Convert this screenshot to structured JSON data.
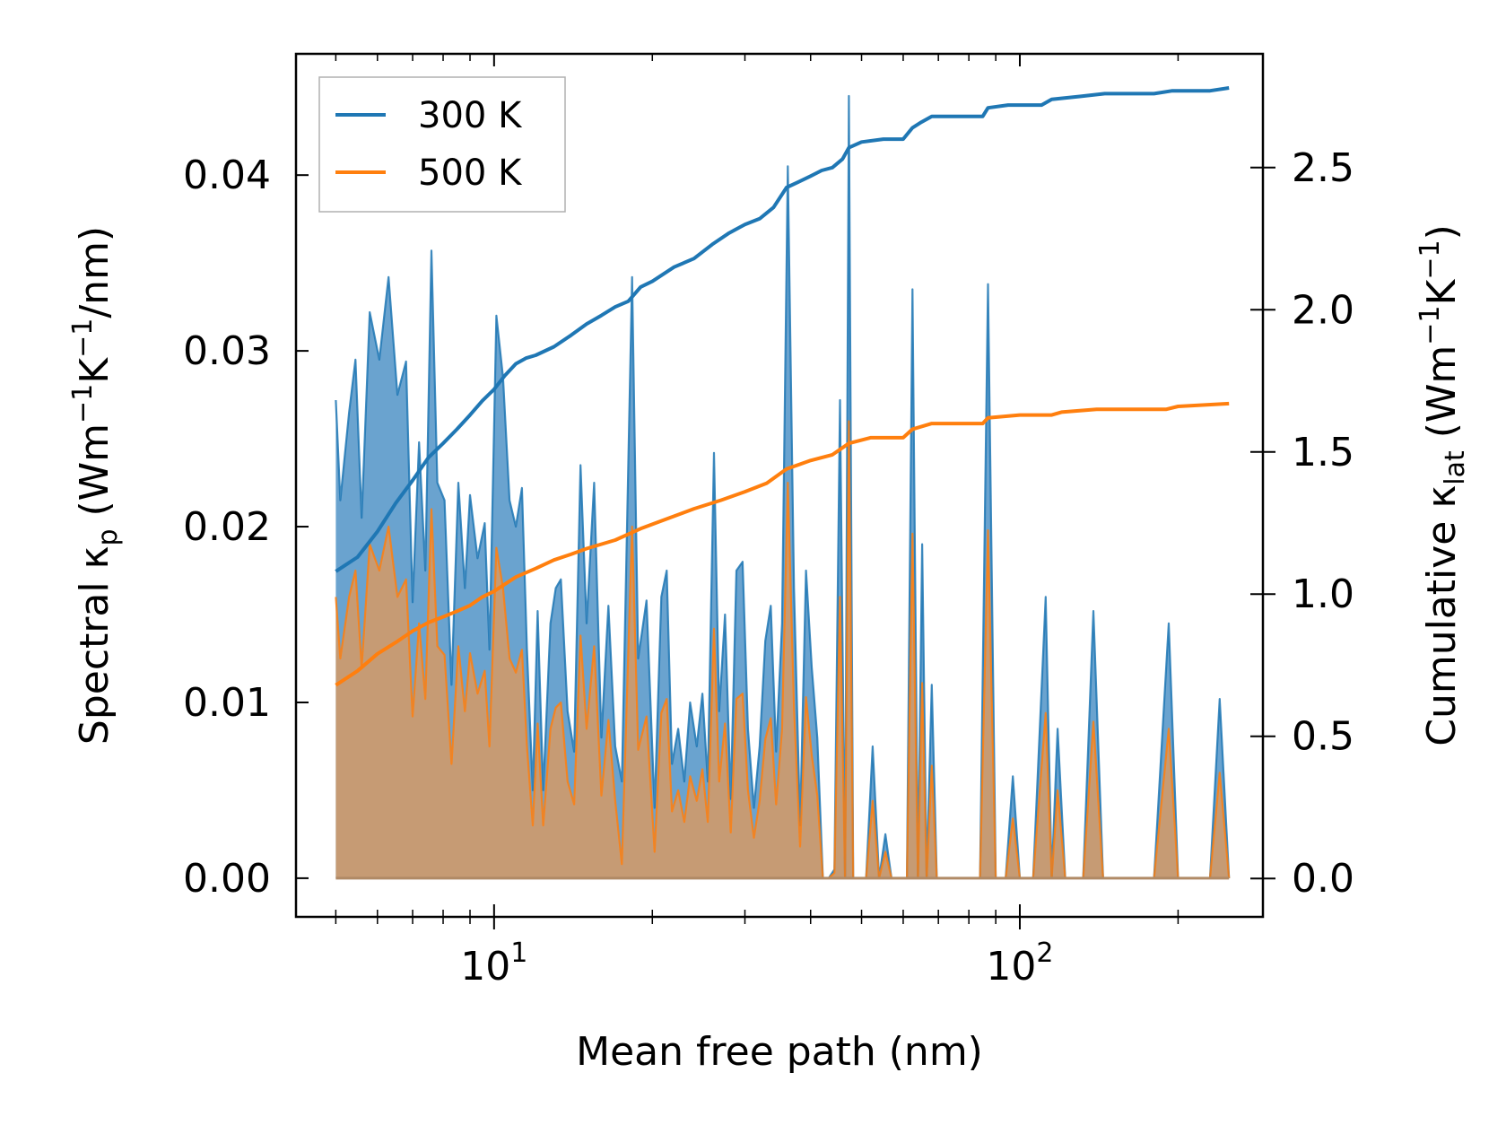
{
  "chart_data": {
    "type": "area",
    "title": "",
    "xlabel": "Mean free path (nm)",
    "ylabel": {
      "prefix": "Spectral κ",
      "sub": "p",
      "suffix_main": " (Wm",
      "sup1": "−1",
      "mid": "K",
      "sup2": "−1",
      "tail": "/nm)"
    },
    "y2label": {
      "prefix": "Cumulative κ",
      "sub": "lat",
      "suffix_main": " (Wm",
      "sup1": "−1",
      "mid": "K",
      "sup2": "−1",
      "tail": ")"
    },
    "xscale": "log",
    "xlim": [
      4.2,
      290
    ],
    "ylim": [
      -0.0022,
      0.0469
    ],
    "y2lim": [
      -0.135,
      2.9
    ],
    "x_ticks": [
      {
        "value": 10,
        "base": "10",
        "exp": "1"
      },
      {
        "value": 100,
        "base": "10",
        "exp": "2"
      }
    ],
    "y_ticks": [
      "0.00",
      "0.01",
      "0.02",
      "0.03",
      "0.04"
    ],
    "y2_ticks": [
      "0.0",
      "0.5",
      "1.0",
      "1.5",
      "2.0",
      "2.5"
    ],
    "legend": {
      "position": "top-left",
      "entries": [
        "300 K",
        "500 K"
      ]
    },
    "colors": {
      "s300": "#1f77b4",
      "s500": "#ff7f0e",
      "fill300": "#6aa3cf",
      "fill500": "#c69b74"
    },
    "spectral": {
      "300 K": [
        [
          5.0,
          0.0272
        ],
        [
          5.1,
          0.0215
        ],
        [
          5.3,
          0.0265
        ],
        [
          5.45,
          0.0295
        ],
        [
          5.6,
          0.0205
        ],
        [
          5.8,
          0.0322
        ],
        [
          6.05,
          0.0295
        ],
        [
          6.3,
          0.0342
        ],
        [
          6.55,
          0.0275
        ],
        [
          6.8,
          0.0294
        ],
        [
          7.0,
          0.0157
        ],
        [
          7.2,
          0.0248
        ],
        [
          7.4,
          0.0175
        ],
        [
          7.6,
          0.0357
        ],
        [
          7.8,
          0.0225
        ],
        [
          8.05,
          0.0215
        ],
        [
          8.3,
          0.011
        ],
        [
          8.55,
          0.0225
        ],
        [
          8.8,
          0.0165
        ],
        [
          9.0,
          0.0218
        ],
        [
          9.3,
          0.0182
        ],
        [
          9.6,
          0.0202
        ],
        [
          9.8,
          0.013
        ],
        [
          10.1,
          0.032
        ],
        [
          10.4,
          0.0285
        ],
        [
          10.7,
          0.0215
        ],
        [
          11.0,
          0.02
        ],
        [
          11.3,
          0.0222
        ],
        [
          11.55,
          0.013
        ],
        [
          11.85,
          0.005
        ],
        [
          12.1,
          0.0152
        ],
        [
          12.4,
          0.005
        ],
        [
          12.8,
          0.0145
        ],
        [
          13.1,
          0.0165
        ],
        [
          13.4,
          0.017
        ],
        [
          13.8,
          0.0095
        ],
        [
          14.2,
          0.0072
        ],
        [
          14.6,
          0.0235
        ],
        [
          15.0,
          0.0145
        ],
        [
          15.5,
          0.0225
        ],
        [
          16.0,
          0.008
        ],
        [
          16.5,
          0.0155
        ],
        [
          17.0,
          0.0075
        ],
        [
          17.5,
          0.0055
        ],
        [
          18.3,
          0.0342
        ],
        [
          18.8,
          0.0125
        ],
        [
          19.5,
          0.0158
        ],
        [
          20.2,
          0.004
        ],
        [
          20.8,
          0.016
        ],
        [
          21.3,
          0.0175
        ],
        [
          21.8,
          0.0065
        ],
        [
          22.4,
          0.0085
        ],
        [
          23.0,
          0.0055
        ],
        [
          23.6,
          0.01
        ],
        [
          24.3,
          0.0075
        ],
        [
          24.9,
          0.0105
        ],
        [
          25.5,
          0.0055
        ],
        [
          26.2,
          0.0242
        ],
        [
          26.8,
          0.0095
        ],
        [
          27.5,
          0.015
        ],
        [
          28.2,
          0.0045
        ],
        [
          28.9,
          0.0175
        ],
        [
          29.7,
          0.018
        ],
        [
          30.4,
          0.0085
        ],
        [
          31.2,
          0.004
        ],
        [
          32.0,
          0.0075
        ],
        [
          32.8,
          0.0135
        ],
        [
          33.6,
          0.0155
        ],
        [
          34.4,
          0.0072
        ],
        [
          35.3,
          0.0145
        ],
        [
          36.2,
          0.0405
        ],
        [
          37.2,
          0.0165
        ],
        [
          38.2,
          0.003
        ],
        [
          39.2,
          0.0175
        ],
        [
          40.2,
          0.012
        ],
        [
          41.2,
          0.008
        ],
        [
          42.2,
          0.0
        ],
        [
          43.3,
          0.0
        ],
        [
          44.4,
          0.0005
        ],
        [
          45.5,
          0.0272
        ],
        [
          46.5,
          0.0
        ],
        [
          47.3,
          0.0445
        ],
        [
          48.2,
          0.0
        ],
        [
          49.5,
          0.0
        ],
        [
          51.0,
          0.0
        ],
        [
          52.5,
          0.0075
        ],
        [
          54.0,
          0.0
        ],
        [
          55.5,
          0.0025
        ],
        [
          57.0,
          0.0
        ],
        [
          59.0,
          0.0
        ],
        [
          61.0,
          0.0
        ],
        [
          62.5,
          0.0335
        ],
        [
          64.0,
          0.0
        ],
        [
          65.2,
          0.019
        ],
        [
          66.5,
          0.0
        ],
        [
          68.0,
          0.011
        ],
        [
          69.5,
          0.0
        ],
        [
          72.0,
          0.0
        ],
        [
          76.0,
          0.0
        ],
        [
          80.0,
          0.0
        ],
        [
          84.0,
          0.0
        ],
        [
          87.0,
          0.0338
        ],
        [
          90.0,
          0.0
        ],
        [
          94.0,
          0.0
        ],
        [
          97.0,
          0.0058
        ],
        [
          100.0,
          0.0
        ],
        [
          106.0,
          0.0
        ],
        [
          112.0,
          0.016
        ],
        [
          115.0,
          0.0
        ],
        [
          118.0,
          0.0085
        ],
        [
          122.0,
          0.0
        ],
        [
          132.0,
          0.0
        ],
        [
          138.0,
          0.0152
        ],
        [
          144.0,
          0.0
        ],
        [
          160.0,
          0.0
        ],
        [
          180.0,
          0.0
        ],
        [
          192.0,
          0.0145
        ],
        [
          200.0,
          0.0
        ],
        [
          215.0,
          0.0
        ],
        [
          230.0,
          0.0
        ],
        [
          240.0,
          0.0102
        ],
        [
          250.0,
          0.0
        ]
      ],
      "500 K": [
        [
          5.0,
          0.016
        ],
        [
          5.1,
          0.0125
        ],
        [
          5.3,
          0.016
        ],
        [
          5.45,
          0.0175
        ],
        [
          5.6,
          0.012
        ],
        [
          5.8,
          0.019
        ],
        [
          6.05,
          0.0175
        ],
        [
          6.3,
          0.02
        ],
        [
          6.55,
          0.016
        ],
        [
          6.8,
          0.017
        ],
        [
          7.0,
          0.0092
        ],
        [
          7.2,
          0.0145
        ],
        [
          7.4,
          0.0102
        ],
        [
          7.6,
          0.021
        ],
        [
          7.8,
          0.0132
        ],
        [
          8.05,
          0.0127
        ],
        [
          8.3,
          0.0065
        ],
        [
          8.55,
          0.0132
        ],
        [
          8.8,
          0.0095
        ],
        [
          9.0,
          0.0128
        ],
        [
          9.3,
          0.0105
        ],
        [
          9.6,
          0.0118
        ],
        [
          9.8,
          0.0075
        ],
        [
          10.1,
          0.0188
        ],
        [
          10.4,
          0.0165
        ],
        [
          10.7,
          0.0125
        ],
        [
          11.0,
          0.0117
        ],
        [
          11.3,
          0.013
        ],
        [
          11.55,
          0.0075
        ],
        [
          11.85,
          0.003
        ],
        [
          12.1,
          0.0088
        ],
        [
          12.4,
          0.003
        ],
        [
          12.8,
          0.0085
        ],
        [
          13.1,
          0.0097
        ],
        [
          13.4,
          0.01
        ],
        [
          13.8,
          0.0055
        ],
        [
          14.2,
          0.0042
        ],
        [
          14.6,
          0.0138
        ],
        [
          15.0,
          0.0085
        ],
        [
          15.5,
          0.0132
        ],
        [
          16.0,
          0.0047
        ],
        [
          16.5,
          0.009
        ],
        [
          17.0,
          0.0044
        ],
        [
          17.5,
          0.0008
        ],
        [
          18.3,
          0.02
        ],
        [
          18.8,
          0.0073
        ],
        [
          19.5,
          0.0092
        ],
        [
          20.2,
          0.0015
        ],
        [
          20.8,
          0.0094
        ],
        [
          21.3,
          0.0102
        ],
        [
          21.8,
          0.0038
        ],
        [
          22.4,
          0.005
        ],
        [
          23.0,
          0.0032
        ],
        [
          23.6,
          0.0058
        ],
        [
          24.3,
          0.0044
        ],
        [
          24.9,
          0.0062
        ],
        [
          25.5,
          0.0032
        ],
        [
          26.2,
          0.0142
        ],
        [
          26.8,
          0.0055
        ],
        [
          27.5,
          0.0088
        ],
        [
          28.2,
          0.0026
        ],
        [
          28.9,
          0.0102
        ],
        [
          29.7,
          0.0105
        ],
        [
          30.4,
          0.005
        ],
        [
          31.2,
          0.0023
        ],
        [
          32.0,
          0.0044
        ],
        [
          32.8,
          0.0079
        ],
        [
          33.6,
          0.0091
        ],
        [
          34.4,
          0.0042
        ],
        [
          35.3,
          0.0085
        ],
        [
          36.2,
          0.0225
        ],
        [
          37.2,
          0.0097
        ],
        [
          38.2,
          0.0018
        ],
        [
          39.2,
          0.0103
        ],
        [
          40.2,
          0.007
        ],
        [
          41.2,
          0.0047
        ],
        [
          42.2,
          0.0
        ],
        [
          43.3,
          0.0
        ],
        [
          44.4,
          0.0003
        ],
        [
          45.5,
          0.016
        ],
        [
          46.5,
          0.0
        ],
        [
          47.3,
          0.026
        ],
        [
          48.2,
          0.0
        ],
        [
          49.5,
          0.0
        ],
        [
          51.0,
          0.0
        ],
        [
          52.5,
          0.0044
        ],
        [
          54.0,
          0.0
        ],
        [
          55.5,
          0.0015
        ],
        [
          57.0,
          0.0
        ],
        [
          59.0,
          0.0
        ],
        [
          61.0,
          0.0
        ],
        [
          62.5,
          0.0196
        ],
        [
          64.0,
          0.0
        ],
        [
          65.2,
          0.0111
        ],
        [
          66.5,
          0.0
        ],
        [
          68.0,
          0.0064
        ],
        [
          69.5,
          0.0
        ],
        [
          72.0,
          0.0
        ],
        [
          76.0,
          0.0
        ],
        [
          80.0,
          0.0
        ],
        [
          84.0,
          0.0
        ],
        [
          87.0,
          0.0198
        ],
        [
          90.0,
          0.0
        ],
        [
          94.0,
          0.0
        ],
        [
          97.0,
          0.0034
        ],
        [
          100.0,
          0.0
        ],
        [
          106.0,
          0.0
        ],
        [
          112.0,
          0.0094
        ],
        [
          115.0,
          0.0
        ],
        [
          118.0,
          0.005
        ],
        [
          122.0,
          0.0
        ],
        [
          132.0,
          0.0
        ],
        [
          138.0,
          0.0089
        ],
        [
          144.0,
          0.0
        ],
        [
          160.0,
          0.0
        ],
        [
          180.0,
          0.0
        ],
        [
          192.0,
          0.0085
        ],
        [
          200.0,
          0.0
        ],
        [
          215.0,
          0.0
        ],
        [
          230.0,
          0.0
        ],
        [
          240.0,
          0.006
        ],
        [
          250.0,
          0.0
        ]
      ]
    },
    "cumulative": {
      "300 K": [
        [
          5.0,
          1.08
        ],
        [
          5.5,
          1.13
        ],
        [
          6.0,
          1.22
        ],
        [
          6.5,
          1.32
        ],
        [
          7.0,
          1.4
        ],
        [
          7.5,
          1.48
        ],
        [
          8.0,
          1.53
        ],
        [
          8.5,
          1.58
        ],
        [
          9.0,
          1.63
        ],
        [
          9.5,
          1.68
        ],
        [
          10.0,
          1.72
        ],
        [
          10.5,
          1.77
        ],
        [
          11.0,
          1.81
        ],
        [
          11.5,
          1.83
        ],
        [
          12.0,
          1.84
        ],
        [
          13.0,
          1.87
        ],
        [
          14.0,
          1.91
        ],
        [
          15.0,
          1.95
        ],
        [
          16.0,
          1.98
        ],
        [
          17.0,
          2.01
        ],
        [
          18.0,
          2.03
        ],
        [
          19.0,
          2.08
        ],
        [
          20.0,
          2.1
        ],
        [
          22.0,
          2.15
        ],
        [
          24.0,
          2.18
        ],
        [
          26.0,
          2.23
        ],
        [
          28.0,
          2.27
        ],
        [
          30.0,
          2.3
        ],
        [
          32.0,
          2.32
        ],
        [
          34.0,
          2.36
        ],
        [
          36.0,
          2.43
        ],
        [
          38.0,
          2.45
        ],
        [
          40.0,
          2.47
        ],
        [
          42.0,
          2.49
        ],
        [
          44.0,
          2.5
        ],
        [
          46.0,
          2.53
        ],
        [
          47.3,
          2.57
        ],
        [
          50.0,
          2.59
        ],
        [
          55.0,
          2.6
        ],
        [
          60.0,
          2.6
        ],
        [
          62.5,
          2.64
        ],
        [
          65.0,
          2.66
        ],
        [
          68.0,
          2.68
        ],
        [
          75.0,
          2.68
        ],
        [
          85.0,
          2.68
        ],
        [
          87.0,
          2.71
        ],
        [
          95.0,
          2.72
        ],
        [
          110.0,
          2.72
        ],
        [
          115.0,
          2.74
        ],
        [
          130.0,
          2.75
        ],
        [
          145.0,
          2.76
        ],
        [
          180.0,
          2.76
        ],
        [
          195.0,
          2.77
        ],
        [
          230.0,
          2.77
        ],
        [
          250.0,
          2.78
        ]
      ],
      "500 K": [
        [
          5.0,
          0.68
        ],
        [
          5.5,
          0.73
        ],
        [
          6.0,
          0.79
        ],
        [
          6.5,
          0.83
        ],
        [
          7.0,
          0.87
        ],
        [
          7.5,
          0.9
        ],
        [
          8.0,
          0.92
        ],
        [
          8.5,
          0.94
        ],
        [
          9.0,
          0.96
        ],
        [
          9.5,
          0.99
        ],
        [
          10.0,
          1.01
        ],
        [
          11.0,
          1.06
        ],
        [
          12.0,
          1.09
        ],
        [
          13.0,
          1.12
        ],
        [
          14.0,
          1.14
        ],
        [
          15.0,
          1.16
        ],
        [
          17.0,
          1.19
        ],
        [
          19.0,
          1.23
        ],
        [
          21.0,
          1.26
        ],
        [
          24.0,
          1.3
        ],
        [
          27.0,
          1.33
        ],
        [
          30.0,
          1.36
        ],
        [
          33.0,
          1.39
        ],
        [
          36.0,
          1.44
        ],
        [
          40.0,
          1.47
        ],
        [
          44.0,
          1.49
        ],
        [
          47.3,
          1.53
        ],
        [
          52.0,
          1.55
        ],
        [
          60.0,
          1.55
        ],
        [
          62.5,
          1.58
        ],
        [
          68.0,
          1.6
        ],
        [
          85.0,
          1.6
        ],
        [
          87.0,
          1.62
        ],
        [
          100.0,
          1.63
        ],
        [
          115.0,
          1.63
        ],
        [
          120.0,
          1.64
        ],
        [
          140.0,
          1.65
        ],
        [
          190.0,
          1.65
        ],
        [
          200.0,
          1.66
        ],
        [
          250.0,
          1.67
        ]
      ]
    }
  }
}
